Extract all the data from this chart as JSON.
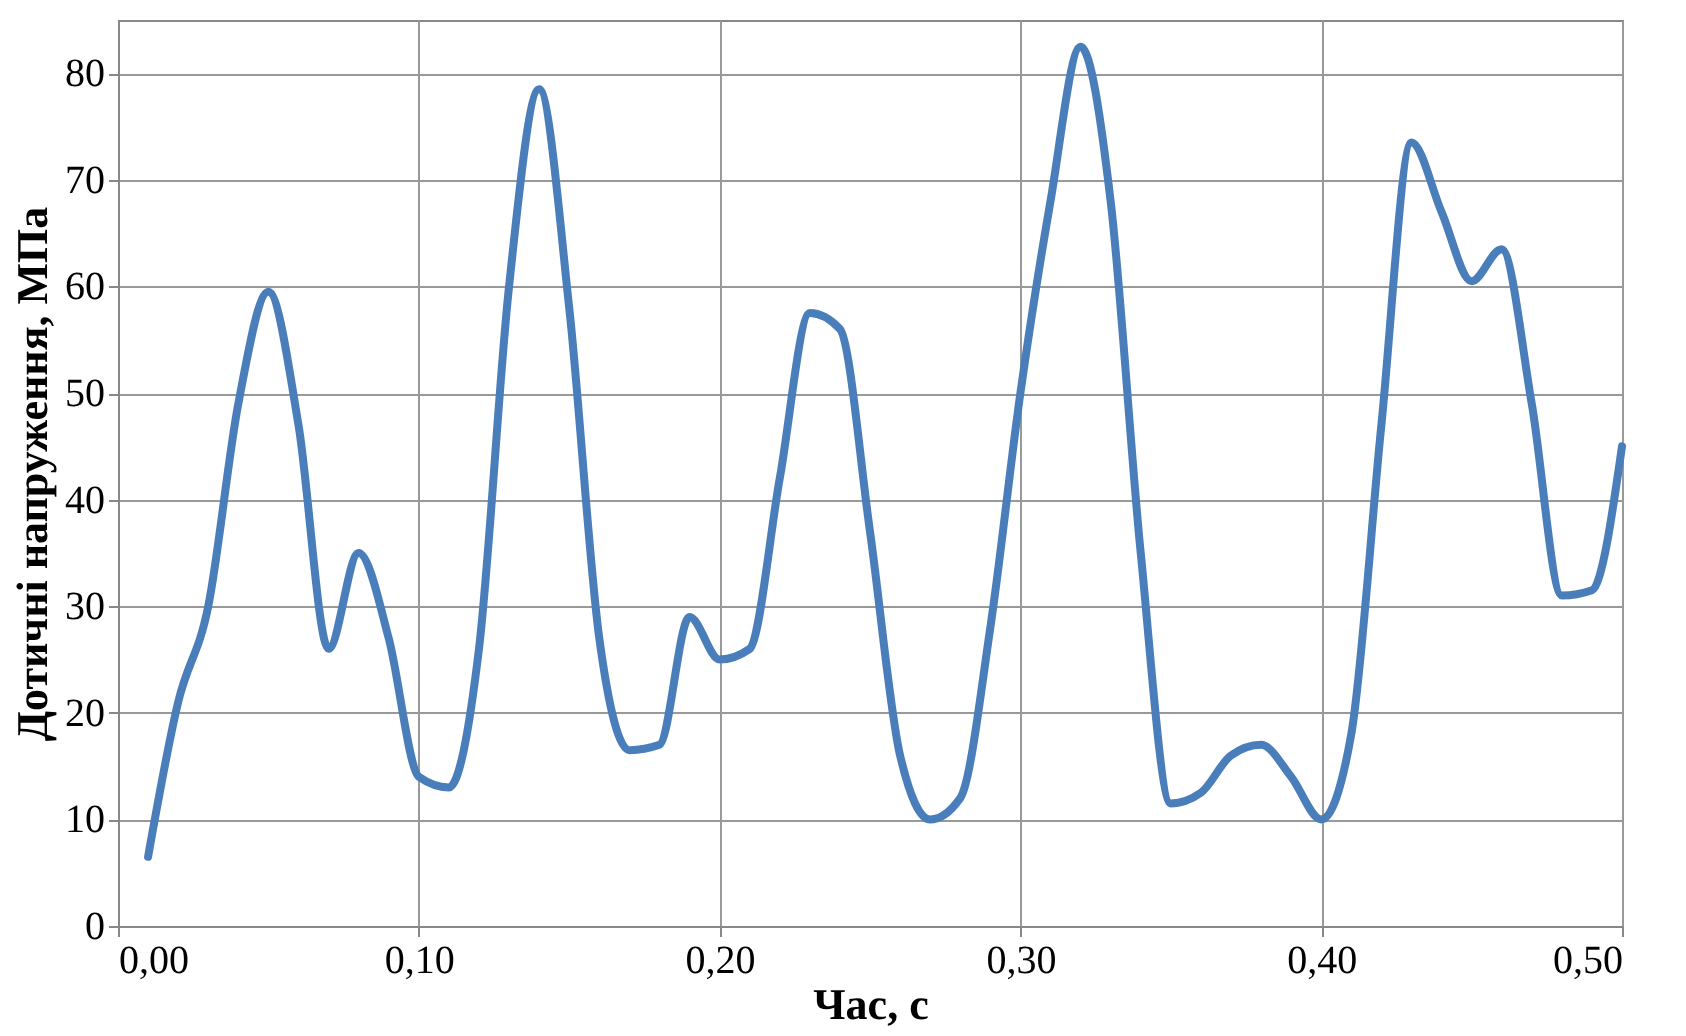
{
  "chart_data": {
    "type": "line",
    "xlabel": "Час, с",
    "ylabel": "Дотичні напруження, МПа",
    "x": [
      0.01,
      0.02,
      0.03,
      0.04,
      0.05,
      0.06,
      0.07,
      0.08,
      0.09,
      0.1,
      0.11,
      0.12,
      0.13,
      0.14,
      0.15,
      0.16,
      0.17,
      0.18,
      0.19,
      0.2,
      0.21,
      0.22,
      0.23,
      0.24,
      0.25,
      0.26,
      0.27,
      0.28,
      0.29,
      0.3,
      0.31,
      0.32,
      0.33,
      0.34,
      0.35,
      0.36,
      0.37,
      0.38,
      0.39,
      0.4,
      0.41,
      0.42,
      0.43,
      0.44,
      0.45,
      0.46,
      0.47,
      0.48,
      0.49,
      0.5
    ],
    "series": [
      {
        "color": "#4a7ebb",
        "values": [
          6.5,
          21,
          30,
          49,
          59.5,
          47,
          26,
          35,
          27,
          14,
          13,
          26,
          60,
          78.5,
          58,
          27,
          16.5,
          17,
          29,
          25,
          26,
          42,
          57.5,
          56,
          37,
          16,
          10,
          12,
          28,
          50,
          68,
          82.5,
          68,
          35,
          11.5,
          12.5,
          16,
          17,
          14,
          10,
          18,
          47,
          73.5,
          67,
          60.5,
          63.5,
          49,
          31,
          31.5,
          45
        ]
      }
    ],
    "xlim": [
      0,
      0.5
    ],
    "ylim": [
      0,
      85
    ],
    "xticks": [
      {
        "value": 0,
        "label": "0,00"
      },
      {
        "value": 0.1,
        "label": "0,10"
      },
      {
        "value": 0.2,
        "label": "0,20"
      },
      {
        "value": 0.3,
        "label": "0,30"
      },
      {
        "value": 0.4,
        "label": "0,40"
      },
      {
        "value": 0.5,
        "label": "0,50"
      }
    ],
    "yticks": [
      0,
      10,
      20,
      30,
      40,
      50,
      60,
      70,
      80
    ],
    "grid": true,
    "marker": "none",
    "line_style": "solid"
  }
}
